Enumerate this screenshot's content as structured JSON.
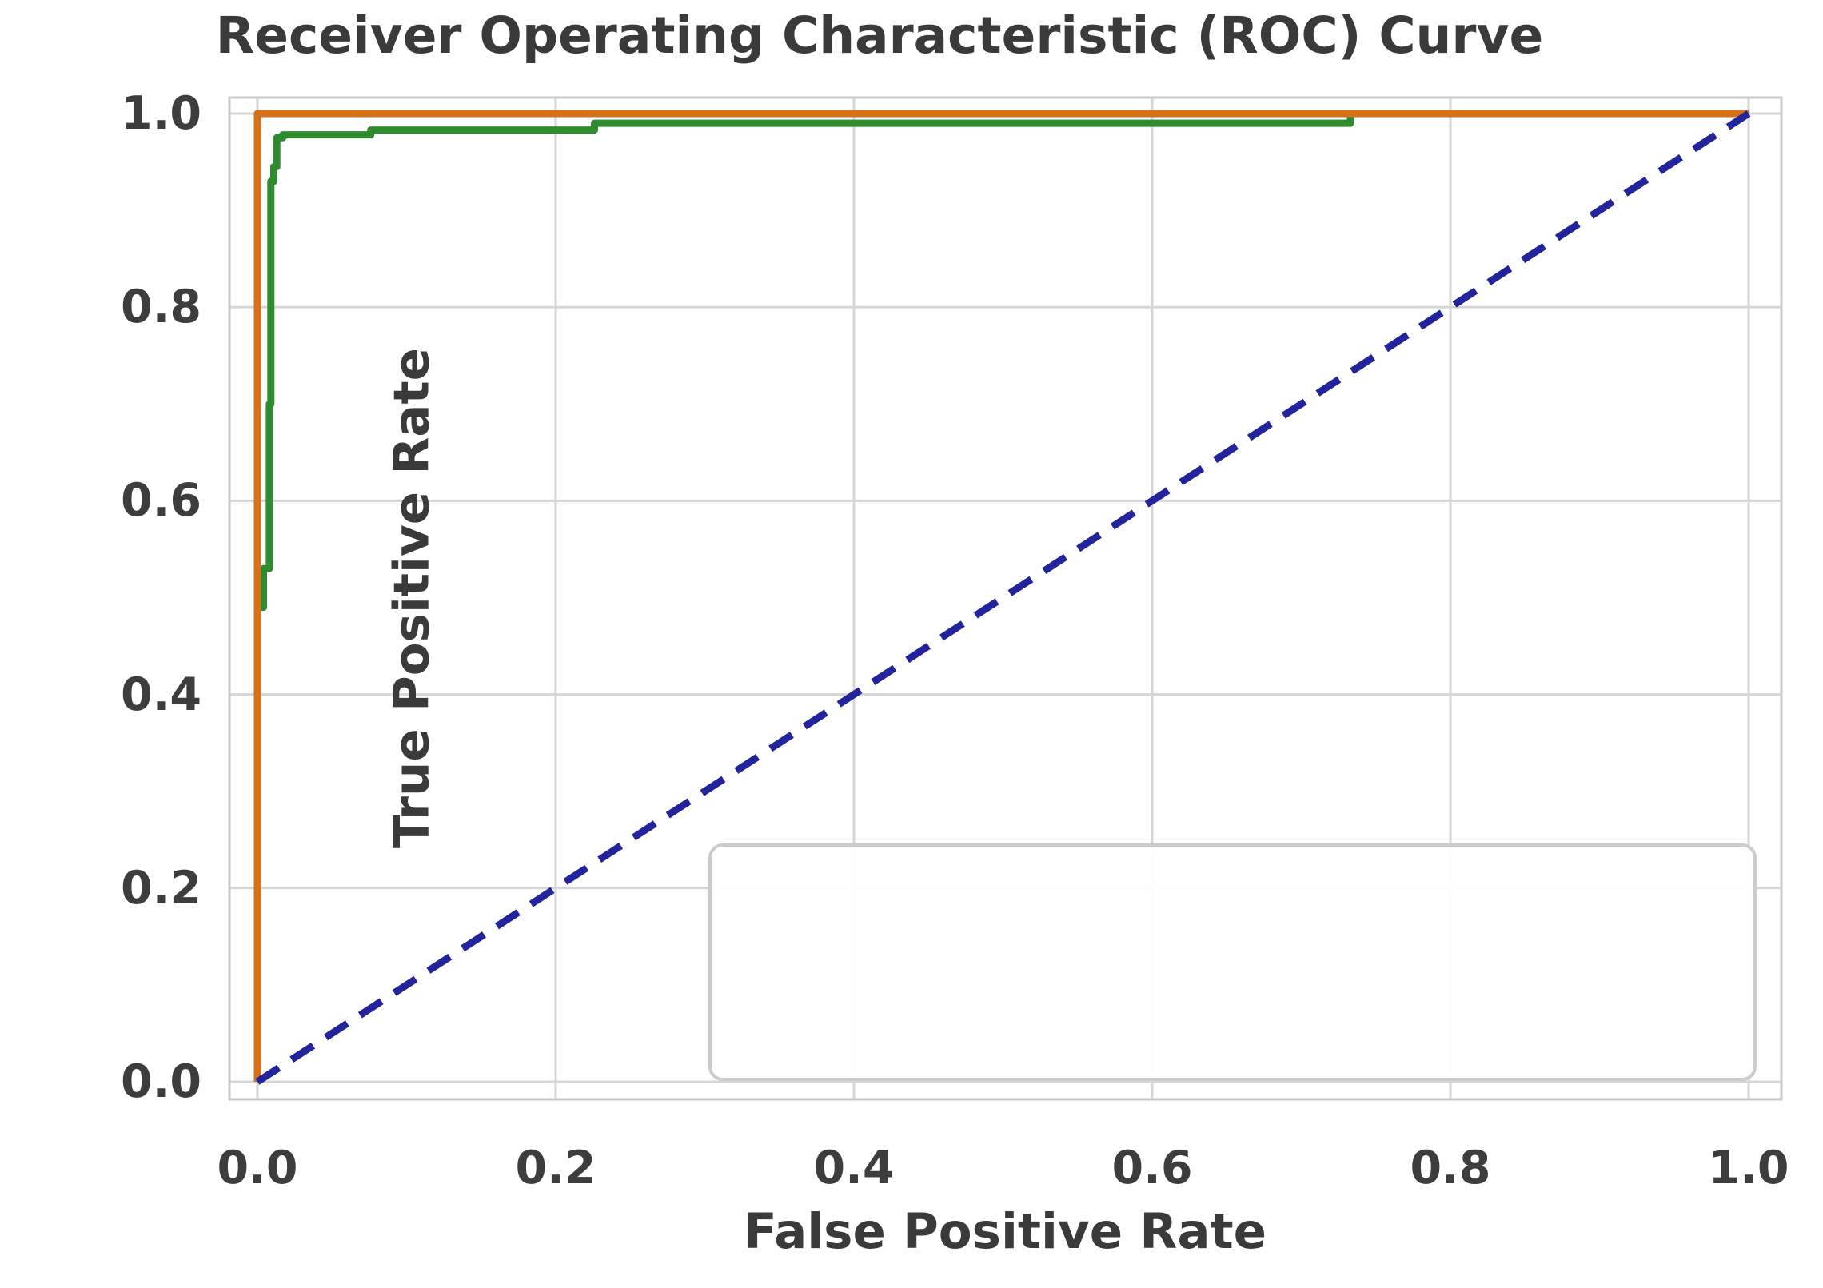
{
  "chart_data": {
    "type": "line",
    "title": "Receiver Operating Characteristic (ROC) Curve",
    "xlabel": "False Positive Rate",
    "ylabel": "True Positive Rate",
    "xlim": [
      -0.02,
      1.02
    ],
    "ylim": [
      -0.02,
      1.02
    ],
    "grid": true,
    "x_ticks": [
      0.0,
      0.2,
      0.4,
      0.6,
      0.8,
      1.0
    ],
    "y_ticks": [
      0.0,
      0.2,
      0.4,
      0.6,
      0.8,
      1.0
    ],
    "x_tick_labels": [
      "0.0",
      "0.2",
      "0.4",
      "0.6",
      "0.8",
      "1.0"
    ],
    "y_tick_labels": [
      "0.0",
      "0.2",
      "0.4",
      "0.6",
      "0.8",
      "1.0"
    ],
    "legend": {
      "visible": true,
      "empty": true,
      "position": "lower right",
      "border_color": "#cccccc",
      "fill_color": "#ffffff"
    },
    "style": {
      "grid_color": "#d6d6d6",
      "spine_color": "#c9c9c9",
      "text_color": "#3a3a3a",
      "background": "#ffffff"
    },
    "series": [
      {
        "id": "roc-curve-green",
        "color": "#2e8b2e",
        "line_style": "solid",
        "points": [
          [
            0.0,
            0.0
          ],
          [
            0.0,
            0.49
          ],
          [
            0.004,
            0.49
          ],
          [
            0.004,
            0.53
          ],
          [
            0.008,
            0.53
          ],
          [
            0.008,
            0.7
          ],
          [
            0.009,
            0.7
          ],
          [
            0.009,
            0.93
          ],
          [
            0.011,
            0.93
          ],
          [
            0.011,
            0.945
          ],
          [
            0.013,
            0.945
          ],
          [
            0.013,
            0.975
          ],
          [
            0.017,
            0.975
          ],
          [
            0.017,
            0.978
          ],
          [
            0.076,
            0.978
          ],
          [
            0.076,
            0.983
          ],
          [
            0.226,
            0.983
          ],
          [
            0.226,
            0.99
          ],
          [
            0.733,
            0.99
          ],
          [
            0.733,
            1.0
          ],
          [
            1.0,
            1.0
          ]
        ]
      },
      {
        "id": "roc-curve-orange",
        "color": "#d4711a",
        "line_style": "solid",
        "points": [
          [
            0.0,
            0.0
          ],
          [
            0.0,
            1.0
          ],
          [
            1.0,
            1.0
          ]
        ]
      },
      {
        "id": "chance-diagonal",
        "color": "#23239b",
        "line_style": "dashed",
        "points": [
          [
            0.0,
            0.0
          ],
          [
            1.0,
            1.0
          ]
        ]
      }
    ]
  }
}
